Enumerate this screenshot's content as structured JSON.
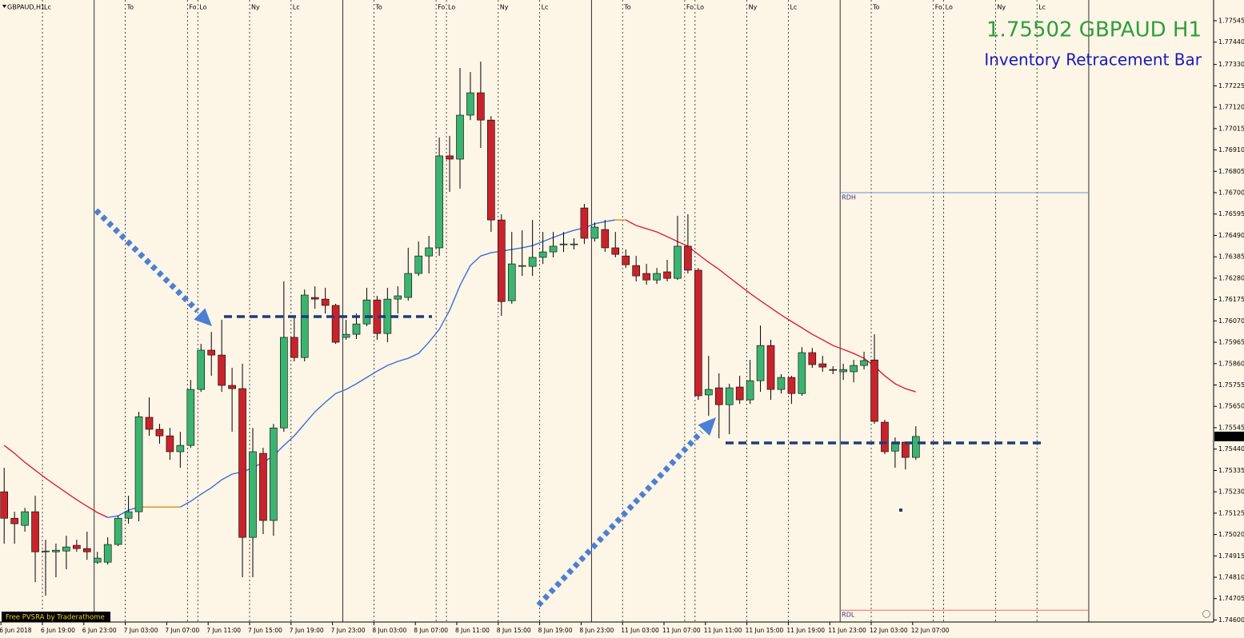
{
  "chart_data": {
    "type": "candlestick",
    "symbol_label": "GBPAUD,H1",
    "title": "1.75502 GBPAUD H1",
    "subtitle": "Inventory Retracement Bar",
    "badge": "Free PVSRA by Traderathome",
    "session_labels": [
      "Lc",
      "To",
      "Fo",
      "Lo",
      "Ny",
      "Lc",
      "To",
      "Fo",
      "Lo",
      "Ny",
      "Lc",
      "To",
      "Fo",
      "Lo",
      "Ny",
      "Lc",
      "To",
      "Fo",
      "Lo",
      "Ny",
      "Lc"
    ],
    "categories": [
      "6 Jun 2018",
      null,
      null,
      null,
      "6 Jun 19:00",
      null,
      null,
      null,
      "6 Jun 23:00",
      null,
      null,
      null,
      "7 Jun 03:00",
      null,
      null,
      null,
      "7 Jun 07:00",
      null,
      null,
      null,
      "7 Jun 11:00",
      null,
      null,
      null,
      "7 Jun 15:00",
      null,
      null,
      null,
      "7 Jun 19:00",
      null,
      null,
      null,
      "7 Jun 23:00",
      null,
      null,
      null,
      "8 Jun 03:00",
      null,
      null,
      null,
      "8 Jun 07:00",
      null,
      null,
      null,
      "8 Jun 11:00",
      null,
      null,
      null,
      "8 Jun 15:00",
      null,
      null,
      null,
      "8 Jun 19:00",
      null,
      null,
      null,
      "8 Jun 23:00",
      null,
      null,
      null,
      "11 Jun 03:00",
      null,
      null,
      null,
      "11 Jun 07:00",
      null,
      null,
      null,
      "11 Jun 11:00",
      null,
      null,
      null,
      "11 Jun 15:00",
      null,
      null,
      null,
      "11 Jun 19:00",
      null,
      null,
      null,
      "11 Jun 23:00",
      null,
      null,
      null,
      "12 Jun 03:00",
      null,
      null,
      null,
      "12 Jun 07:00"
    ],
    "open": [
      1.7523,
      1.751,
      1.75065,
      1.75132,
      1.74935,
      1.74935,
      1.74939,
      1.74967,
      1.74951,
      1.74884,
      1.74884,
      1.74971,
      1.751,
      1.75132,
      1.75596,
      1.75537,
      1.75505,
      1.75427,
      1.75458,
      1.75733,
      1.75926,
      1.75902,
      1.75753,
      1.75737,
      1.75006,
      1.75419,
      1.75089,
      1.75544,
      1.75989,
      1.7589,
      1.76185,
      1.76177,
      1.76146,
      1.75989,
      1.76004,
      1.76055,
      1.76173,
      1.76008,
      1.76177,
      1.76185,
      1.76303,
      1.76389,
      1.76429,
      1.76881,
      1.76865,
      1.77081,
      1.77191,
      1.77057,
      1.76566,
      1.76169,
      1.76338,
      1.76338,
      1.76382,
      1.76409,
      1.76444,
      1.76444,
      1.76625,
      1.76476,
      1.76519,
      1.76429,
      1.76389,
      1.76342,
      1.76303,
      1.76271,
      1.76311,
      1.76279,
      1.76437,
      1.76319,
      1.75706,
      1.75741,
      1.75658,
      1.75745,
      1.75682,
      1.75776,
      1.75949,
      1.75733,
      1.75792,
      1.75713,
      1.75914,
      1.75859,
      1.75831,
      1.7582,
      1.7582,
      1.75851,
      1.75878,
      1.75572,
      1.7543,
      1.75474,
      1.75399
    ],
    "high": [
      1.75348,
      1.75132,
      1.75151,
      1.7521,
      1.74994,
      1.74975,
      1.75014,
      1.74994,
      1.75034,
      1.74935,
      1.75006,
      1.75112,
      1.7521,
      1.75623,
      1.75694,
      1.75564,
      1.75544,
      1.75525,
      1.7578,
      1.75957,
      1.76016,
      1.76075,
      1.75839,
      1.75859,
      1.75544,
      1.75446,
      1.75564,
      1.76264,
      1.76095,
      1.76224,
      1.7624,
      1.76232,
      1.76154,
      1.76075,
      1.76106,
      1.76232,
      1.76193,
      1.76232,
      1.7624,
      1.76429,
      1.7646,
      1.76488,
      1.76971,
      1.76979,
      1.77313,
      1.77293,
      1.77344,
      1.77077,
      1.76594,
      1.76507,
      1.76515,
      1.76566,
      1.76507,
      1.76507,
      1.76507,
      1.76476,
      1.76645,
      1.76554,
      1.76566,
      1.76507,
      1.76421,
      1.76389,
      1.7635,
      1.7633,
      1.7637,
      1.76586,
      1.76594,
      1.7633,
      1.75898,
      1.75812,
      1.75761,
      1.758,
      1.75878,
      1.76047,
      1.75977,
      1.75808,
      1.758,
      1.75941,
      1.75937,
      1.75898,
      1.75847,
      1.75859,
      1.75878,
      1.75918,
      1.76004,
      1.75584,
      1.75497,
      1.75478,
      1.75552
    ],
    "low": [
      1.74975,
      1.74975,
      1.75034,
      1.74786,
      1.74719,
      1.7481,
      1.74849,
      1.74935,
      1.74896,
      1.74876,
      1.74872,
      1.74963,
      1.75073,
      1.75085,
      1.75505,
      1.75466,
      1.75387,
      1.75348,
      1.75446,
      1.75721,
      1.758,
      1.75721,
      1.75525,
      1.7481,
      1.7481,
      1.75022,
      1.75014,
      1.75525,
      1.75871,
      1.75871,
      1.7613,
      1.76106,
      1.75957,
      1.75977,
      1.75981,
      1.76044,
      1.75977,
      1.75965,
      1.76106,
      1.76169,
      1.76291,
      1.76303,
      1.76389,
      1.76704,
      1.7672,
      1.77057,
      1.7692,
      1.76507,
      1.76095,
      1.76154,
      1.76291,
      1.76291,
      1.7635,
      1.76382,
      1.76409,
      1.76421,
      1.76448,
      1.7646,
      1.76409,
      1.76382,
      1.7633,
      1.76264,
      1.76248,
      1.76252,
      1.76264,
      1.76271,
      1.76303,
      1.75682,
      1.75603,
      1.75493,
      1.75513,
      1.75662,
      1.75662,
      1.75721,
      1.75682,
      1.75713,
      1.75662,
      1.75702,
      1.75839,
      1.7582,
      1.75808,
      1.7578,
      1.75768,
      1.75831,
      1.75564,
      1.75415,
      1.75348,
      1.7534,
      1.75387
    ],
    "close": [
      1.751,
      1.75073,
      1.75132,
      1.74935,
      1.74939,
      1.74943,
      1.74959,
      1.74951,
      1.74935,
      1.74904,
      1.74971,
      1.751,
      1.75132,
      1.75599,
      1.75537,
      1.75505,
      1.75427,
      1.75458,
      1.75733,
      1.75926,
      1.75902,
      1.75753,
      1.75737,
      1.75006,
      1.75427,
      1.75089,
      1.75544,
      1.75989,
      1.7589,
      1.76197,
      1.76177,
      1.76146,
      1.75965,
      1.76004,
      1.76055,
      1.76173,
      1.76008,
      1.76177,
      1.76193,
      1.76303,
      1.76389,
      1.76429,
      1.76881,
      1.76865,
      1.77081,
      1.77191,
      1.77057,
      1.76566,
      1.76165,
      1.7635,
      1.76342,
      1.76382,
      1.76409,
      1.76437,
      1.76448,
      1.76448,
      1.76476,
      1.76531,
      1.76429,
      1.76397,
      1.76346,
      1.76291,
      1.76271,
      1.76303,
      1.76279,
      1.76437,
      1.76319,
      1.75702,
      1.75733,
      1.75658,
      1.75741,
      1.75682,
      1.75776,
      1.75949,
      1.75733,
      1.75792,
      1.75713,
      1.75914,
      1.75855,
      1.75843,
      1.75827,
      1.75831,
      1.75851,
      1.75875,
      1.75576,
      1.75427,
      1.75474,
      1.75399,
      1.75502
    ],
    "up_color": "#3cb371",
    "down_color": "#c8232c",
    "moving_average": {
      "values": [
        1.75458,
        1.75419,
        1.75375,
        1.75336,
        1.75297,
        1.75261,
        1.75226,
        1.75191,
        1.75159,
        1.75128,
        1.75104,
        1.75112,
        1.7514,
        1.75155,
        1.75155,
        1.75155,
        1.75155,
        1.75155,
        1.75183,
        1.75218,
        1.7525,
        1.75289,
        1.75317,
        1.75328,
        1.75348,
        1.75375,
        1.75407,
        1.75458,
        1.75505,
        1.75564,
        1.75623,
        1.7567,
        1.75713,
        1.75733,
        1.75761,
        1.75792,
        1.75823,
        1.75851,
        1.75871,
        1.75886,
        1.7591,
        1.75965,
        1.76028,
        1.76122,
        1.76244,
        1.76342,
        1.76389,
        1.76405,
        1.76413,
        1.76421,
        1.76429,
        1.7644,
        1.7646,
        1.7648,
        1.76499,
        1.76515,
        1.76527,
        1.76547,
        1.76558,
        1.76566,
        1.76566,
        1.76539,
        1.76523,
        1.76507,
        1.76484,
        1.7646,
        1.76437,
        1.76397,
        1.76358,
        1.76323,
        1.76283,
        1.76244,
        1.76205,
        1.76169,
        1.76134,
        1.76099,
        1.76067,
        1.76036,
        1.76004,
        1.75977,
        1.75949,
        1.7593,
        1.7591,
        1.75886,
        1.75847,
        1.758,
        1.75761,
        1.75737,
        1.75721
      ],
      "up_color": "#3a6fd8",
      "down_color": "#dc1f3c",
      "flat_color": "#d98c1a"
    },
    "levels": [
      {
        "value": 1.76091,
        "color": "#1f3c78"
      },
      {
        "value": 1.7547,
        "color": "#1f3c78"
      }
    ],
    "day_range": [
      {
        "label": "RDH",
        "value": 1.767,
        "color": "#6b8fe8"
      },
      {
        "label": "RDL",
        "value": 1.74648,
        "color": "#f06a6a"
      }
    ],
    "ylim": [
      1.7459,
      1.77647
    ],
    "yticks": [
      1.77545,
      {
        "value": 1.7744,
        "label": "1.77440"
      },
      {
        "value": 1.7733,
        "label": "1.77330"
      },
      1.77225,
      {
        "value": 1.7712,
        "label": "1.77120"
      },
      1.77015,
      {
        "value": 1.7691,
        "label": "1.76910"
      },
      1.76805,
      {
        "value": 1.767,
        "label": "1.76700"
      },
      1.76595,
      {
        "value": 1.7649,
        "label": "1.76490"
      },
      1.76385,
      {
        "value": 1.7628,
        "label": "1.76280"
      },
      1.76175,
      {
        "value": 1.7607,
        "label": "1.76070"
      },
      1.75965,
      {
        "value": 1.7586,
        "label": "1.75860"
      },
      1.75755,
      {
        "value": 1.7565,
        "label": "1.75650"
      },
      1.75545,
      {
        "value": 1.7544,
        "label": "1.75440"
      },
      1.75335,
      {
        "value": 1.7523,
        "label": "1.75230"
      },
      1.75125,
      {
        "value": 1.7502,
        "label": "1.75020"
      },
      1.74915,
      {
        "value": 1.7481,
        "label": "1.74810"
      },
      1.74705,
      {
        "value": 1.746,
        "label": "1.74600"
      }
    ]
  }
}
